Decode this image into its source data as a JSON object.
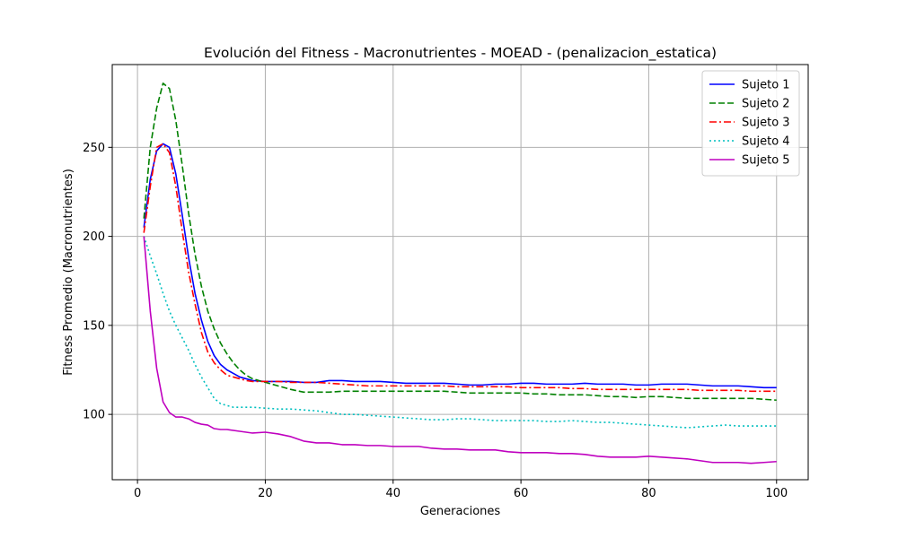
{
  "chart_data": {
    "type": "line",
    "title": "Evolución del Fitness - Macronutrientes - MOEAD - (penalizacion_estatica)",
    "xlabel": "Generaciones",
    "ylabel": "Fitness Promedio (Macronutrientes)",
    "xlim": [
      -3.95,
      104.95
    ],
    "ylim": [
      63.3,
      296.5
    ],
    "xticks": [
      0,
      20,
      40,
      60,
      80,
      100
    ],
    "yticks": [
      100,
      150,
      200,
      250
    ],
    "grid": true,
    "legend_position": "top-right",
    "series": [
      {
        "name": "Sujeto 1",
        "color": "#0000ff",
        "dash": "solid",
        "points": [
          [
            1,
            205
          ],
          [
            2,
            232
          ],
          [
            3,
            248
          ],
          [
            4,
            252
          ],
          [
            5,
            250
          ],
          [
            6,
            235
          ],
          [
            7,
            212
          ],
          [
            8,
            188
          ],
          [
            9,
            168
          ],
          [
            10,
            153
          ],
          [
            11,
            141
          ],
          [
            12,
            133
          ],
          [
            13,
            128
          ],
          [
            14,
            125
          ],
          [
            15,
            123
          ],
          [
            16,
            121
          ],
          [
            17,
            120
          ],
          [
            18,
            119
          ],
          [
            20,
            118.5
          ],
          [
            22,
            118.5
          ],
          [
            24,
            118.5
          ],
          [
            26,
            118
          ],
          [
            28,
            118
          ],
          [
            30,
            119
          ],
          [
            32,
            119
          ],
          [
            34,
            118.5
          ],
          [
            36,
            118.5
          ],
          [
            38,
            118.5
          ],
          [
            40,
            118
          ],
          [
            42,
            117.5
          ],
          [
            44,
            117.5
          ],
          [
            46,
            117.5
          ],
          [
            48,
            117.5
          ],
          [
            50,
            117
          ],
          [
            52,
            116.5
          ],
          [
            54,
            116.5
          ],
          [
            56,
            117
          ],
          [
            58,
            117
          ],
          [
            60,
            117.5
          ],
          [
            62,
            117.5
          ],
          [
            64,
            117
          ],
          [
            66,
            117
          ],
          [
            68,
            117
          ],
          [
            70,
            117.5
          ],
          [
            72,
            117
          ],
          [
            74,
            117
          ],
          [
            76,
            117
          ],
          [
            78,
            116.5
          ],
          [
            80,
            116.5
          ],
          [
            82,
            117
          ],
          [
            84,
            117
          ],
          [
            86,
            117
          ],
          [
            88,
            116.5
          ],
          [
            90,
            116
          ],
          [
            92,
            116
          ],
          [
            94,
            116
          ],
          [
            96,
            115.5
          ],
          [
            98,
            115
          ],
          [
            100,
            115
          ]
        ]
      },
      {
        "name": "Sujeto 2",
        "color": "#008000",
        "dash": "dashed",
        "points": [
          [
            1,
            210
          ],
          [
            2,
            250
          ],
          [
            3,
            272
          ],
          [
            4,
            286
          ],
          [
            5,
            283
          ],
          [
            6,
            265
          ],
          [
            7,
            240
          ],
          [
            8,
            213
          ],
          [
            9,
            190
          ],
          [
            10,
            172
          ],
          [
            11,
            158
          ],
          [
            12,
            148
          ],
          [
            13,
            140
          ],
          [
            14,
            134
          ],
          [
            15,
            129
          ],
          [
            16,
            125
          ],
          [
            17,
            122
          ],
          [
            18,
            120
          ],
          [
            20,
            118
          ],
          [
            22,
            116
          ],
          [
            24,
            114
          ],
          [
            26,
            112.5
          ],
          [
            28,
            112.5
          ],
          [
            30,
            112.5
          ],
          [
            32,
            113
          ],
          [
            34,
            113
          ],
          [
            36,
            113
          ],
          [
            38,
            113
          ],
          [
            40,
            113
          ],
          [
            42,
            113
          ],
          [
            44,
            113
          ],
          [
            46,
            113
          ],
          [
            48,
            113
          ],
          [
            50,
            112.5
          ],
          [
            52,
            112
          ],
          [
            54,
            112
          ],
          [
            56,
            112
          ],
          [
            58,
            112
          ],
          [
            60,
            112
          ],
          [
            62,
            111.5
          ],
          [
            64,
            111.5
          ],
          [
            66,
            111
          ],
          [
            68,
            111
          ],
          [
            70,
            111
          ],
          [
            72,
            110.5
          ],
          [
            74,
            110
          ],
          [
            76,
            110
          ],
          [
            78,
            109.5
          ],
          [
            80,
            110
          ],
          [
            82,
            110
          ],
          [
            84,
            109.5
          ],
          [
            86,
            109
          ],
          [
            88,
            109
          ],
          [
            90,
            109
          ],
          [
            92,
            109
          ],
          [
            94,
            109
          ],
          [
            96,
            109
          ],
          [
            98,
            108.5
          ],
          [
            100,
            108
          ]
        ]
      },
      {
        "name": "Sujeto 3",
        "color": "#ff0000",
        "dash": "dashdot",
        "points": [
          [
            1,
            202
          ],
          [
            2,
            228
          ],
          [
            3,
            250
          ],
          [
            4,
            252
          ],
          [
            5,
            247
          ],
          [
            6,
            228
          ],
          [
            7,
            203
          ],
          [
            8,
            180
          ],
          [
            9,
            162
          ],
          [
            10,
            146
          ],
          [
            11,
            135
          ],
          [
            12,
            129
          ],
          [
            13,
            125
          ],
          [
            14,
            122
          ],
          [
            15,
            121
          ],
          [
            16,
            120
          ],
          [
            17,
            119
          ],
          [
            18,
            118.5
          ],
          [
            20,
            118.5
          ],
          [
            22,
            118.5
          ],
          [
            24,
            118
          ],
          [
            26,
            118
          ],
          [
            28,
            118
          ],
          [
            30,
            117.5
          ],
          [
            32,
            117
          ],
          [
            34,
            116.5
          ],
          [
            36,
            116
          ],
          [
            38,
            116
          ],
          [
            40,
            116
          ],
          [
            42,
            116
          ],
          [
            44,
            116
          ],
          [
            46,
            116
          ],
          [
            48,
            116
          ],
          [
            50,
            115.5
          ],
          [
            52,
            115.5
          ],
          [
            54,
            115.5
          ],
          [
            56,
            115.5
          ],
          [
            58,
            115.5
          ],
          [
            60,
            115
          ],
          [
            62,
            115
          ],
          [
            64,
            115
          ],
          [
            66,
            115
          ],
          [
            68,
            114.5
          ],
          [
            70,
            114.5
          ],
          [
            72,
            114
          ],
          [
            74,
            114
          ],
          [
            76,
            114
          ],
          [
            78,
            114
          ],
          [
            80,
            114
          ],
          [
            82,
            114
          ],
          [
            84,
            114
          ],
          [
            86,
            114
          ],
          [
            88,
            113.5
          ],
          [
            90,
            113.5
          ],
          [
            92,
            113.5
          ],
          [
            94,
            113.5
          ],
          [
            96,
            113
          ],
          [
            98,
            113
          ],
          [
            100,
            113
          ]
        ]
      },
      {
        "name": "Sujeto 4",
        "color": "#00bfbf",
        "dash": "dotted",
        "points": [
          [
            1,
            200
          ],
          [
            2,
            189
          ],
          [
            3,
            179
          ],
          [
            4,
            168
          ],
          [
            5,
            158
          ],
          [
            6,
            150
          ],
          [
            7,
            143
          ],
          [
            8,
            136
          ],
          [
            9,
            128
          ],
          [
            10,
            121
          ],
          [
            11,
            115
          ],
          [
            12,
            109
          ],
          [
            13,
            106
          ],
          [
            14,
            105
          ],
          [
            15,
            104
          ],
          [
            16,
            104
          ],
          [
            18,
            104
          ],
          [
            20,
            103.5
          ],
          [
            22,
            103
          ],
          [
            24,
            103
          ],
          [
            26,
            102.5
          ],
          [
            28,
            102
          ],
          [
            30,
            101
          ],
          [
            32,
            100
          ],
          [
            34,
            100
          ],
          [
            36,
            99.5
          ],
          [
            38,
            99
          ],
          [
            40,
            98.5
          ],
          [
            42,
            98
          ],
          [
            44,
            97.5
          ],
          [
            46,
            97
          ],
          [
            48,
            97
          ],
          [
            50,
            97.5
          ],
          [
            52,
            97.5
          ],
          [
            54,
            97
          ],
          [
            56,
            96.5
          ],
          [
            58,
            96.5
          ],
          [
            60,
            96.5
          ],
          [
            62,
            96.5
          ],
          [
            64,
            96
          ],
          [
            66,
            96
          ],
          [
            68,
            96.5
          ],
          [
            70,
            96
          ],
          [
            72,
            95.5
          ],
          [
            74,
            95.5
          ],
          [
            76,
            95
          ],
          [
            78,
            94.5
          ],
          [
            80,
            94
          ],
          [
            82,
            93.5
          ],
          [
            84,
            93
          ],
          [
            86,
            92.5
          ],
          [
            88,
            93
          ],
          [
            90,
            93.5
          ],
          [
            92,
            94
          ],
          [
            94,
            93.5
          ],
          [
            96,
            93.5
          ],
          [
            98,
            93.5
          ],
          [
            100,
            93.5
          ]
        ]
      },
      {
        "name": "Sujeto 5",
        "color": "#bf00bf",
        "dash": "solid",
        "points": [
          [
            1,
            200
          ],
          [
            2,
            158
          ],
          [
            3,
            126
          ],
          [
            4,
            107
          ],
          [
            5,
            101
          ],
          [
            6,
            98.5
          ],
          [
            7,
            98.5
          ],
          [
            8,
            97.5
          ],
          [
            9,
            95.5
          ],
          [
            10,
            94.5
          ],
          [
            11,
            94
          ],
          [
            12,
            92
          ],
          [
            13,
            91.5
          ],
          [
            14,
            91.5
          ],
          [
            16,
            90.5
          ],
          [
            18,
            89.5
          ],
          [
            20,
            90
          ],
          [
            22,
            89
          ],
          [
            24,
            87.5
          ],
          [
            26,
            85
          ],
          [
            28,
            84
          ],
          [
            30,
            84
          ],
          [
            32,
            83
          ],
          [
            34,
            83
          ],
          [
            36,
            82.5
          ],
          [
            38,
            82.5
          ],
          [
            40,
            82
          ],
          [
            42,
            82
          ],
          [
            44,
            82
          ],
          [
            46,
            81
          ],
          [
            48,
            80.5
          ],
          [
            50,
            80.5
          ],
          [
            52,
            80
          ],
          [
            54,
            80
          ],
          [
            56,
            80
          ],
          [
            58,
            79
          ],
          [
            60,
            78.5
          ],
          [
            62,
            78.5
          ],
          [
            64,
            78.5
          ],
          [
            66,
            78
          ],
          [
            68,
            78
          ],
          [
            70,
            77.5
          ],
          [
            72,
            76.5
          ],
          [
            74,
            76
          ],
          [
            76,
            76
          ],
          [
            78,
            76
          ],
          [
            80,
            76.5
          ],
          [
            82,
            76
          ],
          [
            84,
            75.5
          ],
          [
            86,
            75
          ],
          [
            88,
            74
          ],
          [
            90,
            73
          ],
          [
            92,
            73
          ],
          [
            94,
            73
          ],
          [
            96,
            72.5
          ],
          [
            98,
            73
          ],
          [
            100,
            73.5
          ]
        ]
      }
    ]
  }
}
